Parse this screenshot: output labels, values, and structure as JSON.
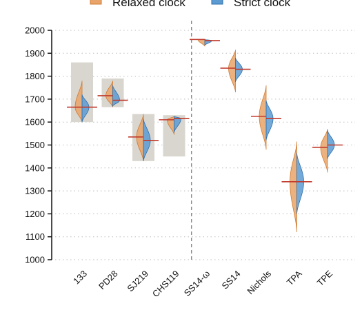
{
  "chart_data": {
    "type": "violin",
    "title": "",
    "xlabel": "",
    "ylabel": "",
    "ylim": [
      1000,
      2000
    ],
    "yticks": [
      1000,
      1100,
      1200,
      1300,
      1400,
      1500,
      1600,
      1700,
      1800,
      1900,
      2000
    ],
    "grid": "horizontal dotted",
    "legend": {
      "placement": "top-center",
      "entries": [
        {
          "label": "Relaxed clock",
          "color": "#E8A46A"
        },
        {
          "label": "Strict clock",
          "color": "#5C9BD2"
        }
      ]
    },
    "categories": [
      "133",
      "PD28",
      "SJ219",
      "CHS119",
      "SS14-ω",
      "SS14",
      "Nichols",
      "TPA",
      "TPE"
    ],
    "divider_after_category": "CHS119",
    "series": [
      {
        "name": "Relaxed clock",
        "color": "#E8A46A",
        "side": "left",
        "median": [
          1665,
          1715,
          1535,
          1610,
          1960,
          1835,
          1625,
          1340,
          1490
        ],
        "min": [
          1600,
          1665,
          1430,
          1545,
          1930,
          1730,
          1480,
          1120,
          1380
        ],
        "max": [
          1780,
          1780,
          1635,
          1625,
          1960,
          1915,
          1760,
          1515,
          1570
        ]
      },
      {
        "name": "Strict clock",
        "color": "#5C9BD2",
        "side": "right",
        "median": [
          1665,
          1695,
          1520,
          1615,
          1955,
          1830,
          1615,
          1340,
          1500
        ],
        "min": [
          1600,
          1670,
          1430,
          1555,
          1935,
          1775,
          1520,
          1200,
          1440
        ],
        "max": [
          1720,
          1760,
          1615,
          1625,
          1960,
          1880,
          1695,
          1465,
          1565
        ]
      }
    ],
    "shaded_intervals": [
      {
        "category": "133",
        "low": 1600,
        "high": 1860
      },
      {
        "category": "PD28",
        "low": 1665,
        "high": 1790
      },
      {
        "category": "SJ219",
        "low": 1430,
        "high": 1635
      },
      {
        "category": "CHS119",
        "low": 1450,
        "high": 1630
      }
    ],
    "colors": {
      "shade": "#D9D6CF",
      "median_line": "#C0392B",
      "divider": "#777777",
      "grid": "#BBBBBB"
    }
  }
}
